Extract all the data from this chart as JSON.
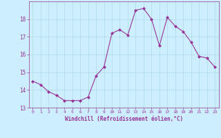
{
  "x": [
    0,
    1,
    2,
    3,
    4,
    5,
    6,
    7,
    8,
    9,
    10,
    11,
    12,
    13,
    14,
    15,
    16,
    17,
    18,
    19,
    20,
    21,
    22,
    23
  ],
  "y": [
    14.5,
    14.3,
    13.9,
    13.7,
    13.4,
    13.4,
    13.4,
    13.6,
    14.8,
    15.3,
    17.2,
    17.4,
    17.1,
    18.5,
    18.6,
    18.0,
    16.5,
    18.1,
    17.6,
    17.3,
    16.7,
    15.9,
    15.8,
    15.3
  ],
  "line_color": "#993399",
  "marker": "D",
  "marker_size": 2,
  "bg_color": "#cceeff",
  "grid_color": "#aadddd",
  "xlabel": "Windchill (Refroidissement éolien,°C)",
  "xlabel_color": "#993399",
  "tick_color": "#993399",
  "ylim": [
    13,
    19
  ],
  "xlim": [
    -0.5,
    23.5
  ],
  "yticks": [
    13,
    14,
    15,
    16,
    17,
    18
  ],
  "xticks": [
    0,
    1,
    2,
    3,
    4,
    5,
    6,
    7,
    8,
    9,
    10,
    11,
    12,
    13,
    14,
    15,
    16,
    17,
    18,
    19,
    20,
    21,
    22,
    23
  ]
}
